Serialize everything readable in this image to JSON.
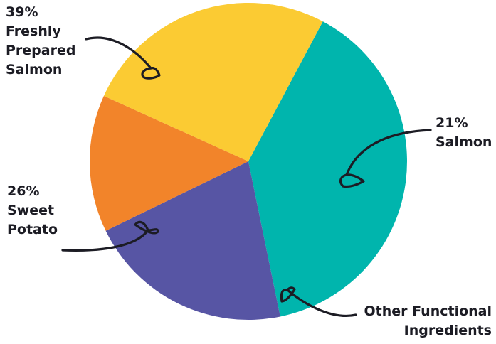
{
  "chart_data": {
    "type": "pie",
    "slices": [
      {
        "label": "Freshly Prepared Salmon",
        "value": 39,
        "value_text": "39%",
        "color": "#00b5ad"
      },
      {
        "label": "Salmon",
        "value": 21,
        "value_text": "21%",
        "color": "#5755a4"
      },
      {
        "label": "Other Functional Ingredients",
        "value": 14,
        "value_text": "",
        "color": "#f2842a"
      },
      {
        "label": "Sweet Potato",
        "value": 26,
        "value_text": "26%",
        "color": "#fbcb33"
      }
    ],
    "label_lines": [
      [
        "39%",
        "Freshly",
        "Prepared",
        "Salmon"
      ],
      [
        "21%",
        "Salmon"
      ],
      [
        "Other Functional",
        "Ingredients"
      ],
      [
        "26%",
        "Sweet",
        "Potato"
      ]
    ],
    "label_placement": "outside, with hand-drawn arrows",
    "legend": "none",
    "start_angle_deg": -62
  }
}
